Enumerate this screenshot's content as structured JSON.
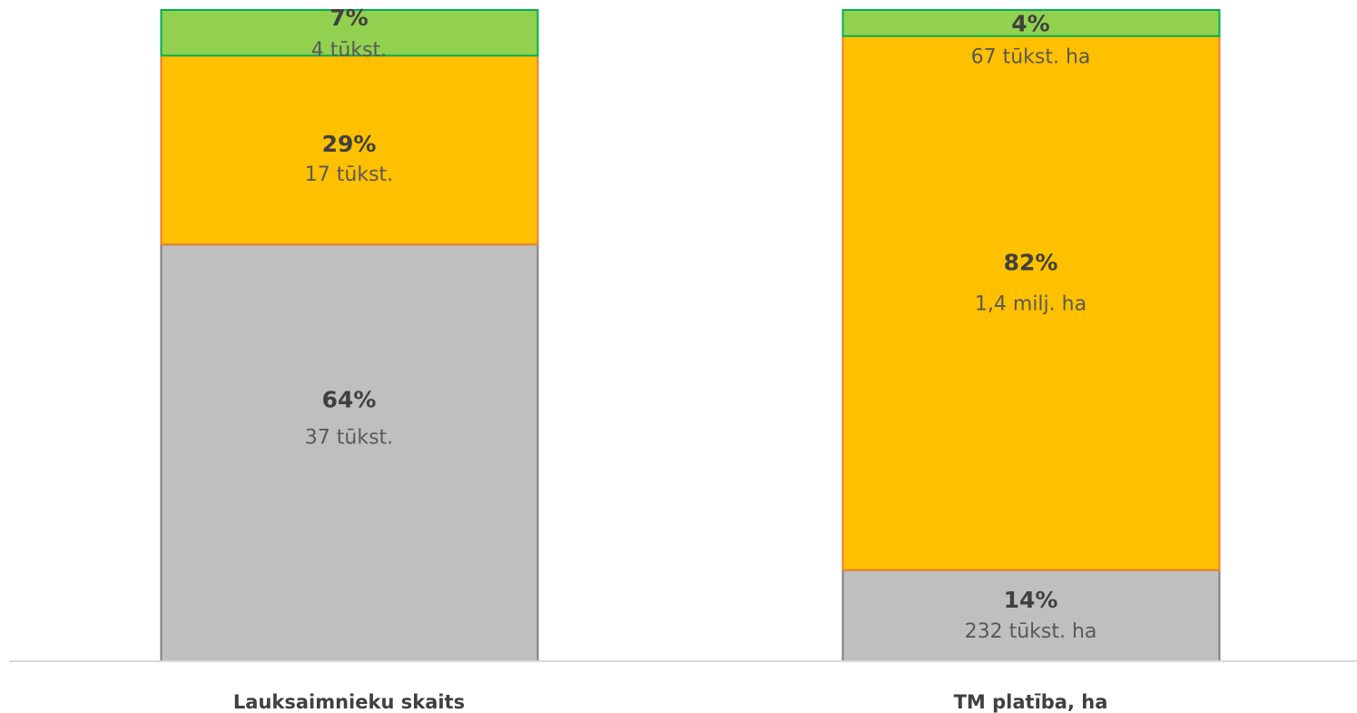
{
  "chart_data": {
    "type": "bar",
    "stacked": true,
    "normalized_percent": true,
    "title": "",
    "xlabel": "",
    "ylabel": "",
    "ylim": [
      0,
      100
    ],
    "grid": false,
    "legend": "none",
    "categories": [
      "Lauksaimnieku skaits",
      "TM platība, ha"
    ],
    "series": [
      {
        "color": "#bfbfbf",
        "border": "#7f7f7f",
        "values": [
          64,
          14
        ],
        "value_labels": [
          "64%",
          "14%"
        ],
        "detail_labels": [
          "37 tūkst.",
          "232 tūkst. ha"
        ]
      },
      {
        "color": "#ffc000",
        "border": "#ed7d31",
        "values": [
          29,
          82
        ],
        "value_labels": [
          "29%",
          "82%"
        ],
        "detail_labels": [
          "17 tūkst.",
          "1,4 milj. ha"
        ]
      },
      {
        "color": "#92d050",
        "border": "#00b050",
        "values": [
          7,
          4
        ],
        "value_labels": [
          "7%",
          "4%"
        ],
        "detail_labels": [
          "4 tūkst.",
          "67 tūkst. ha"
        ]
      }
    ]
  }
}
